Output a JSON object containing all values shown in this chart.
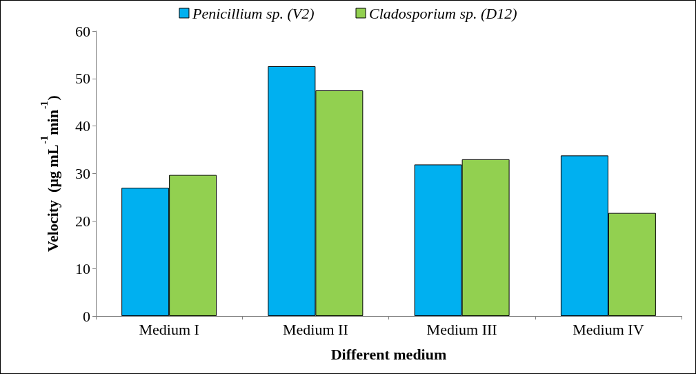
{
  "chart_data": {
    "type": "bar",
    "xlabel": "Different medium",
    "ylabel": "Velocity  (µg mL$^{-1}$min$^{-1}$)",
    "categories": [
      "Medium I",
      "Medium II",
      "Medium III",
      "Medium IV"
    ],
    "series": [
      {
        "name": "Penicillium sp. (V2)",
        "color": "#00b0f0",
        "values": [
          27.0,
          52.6,
          31.9,
          33.8
        ]
      },
      {
        "name": "Cladosporium sp. (D12)",
        "color": "#92d050",
        "values": [
          29.7,
          47.5,
          33.0,
          21.7
        ]
      }
    ],
    "ylim": [
      0,
      60
    ],
    "yticks": [
      0,
      10,
      20,
      30,
      40,
      50,
      60
    ],
    "grid": false,
    "legend": "top"
  }
}
